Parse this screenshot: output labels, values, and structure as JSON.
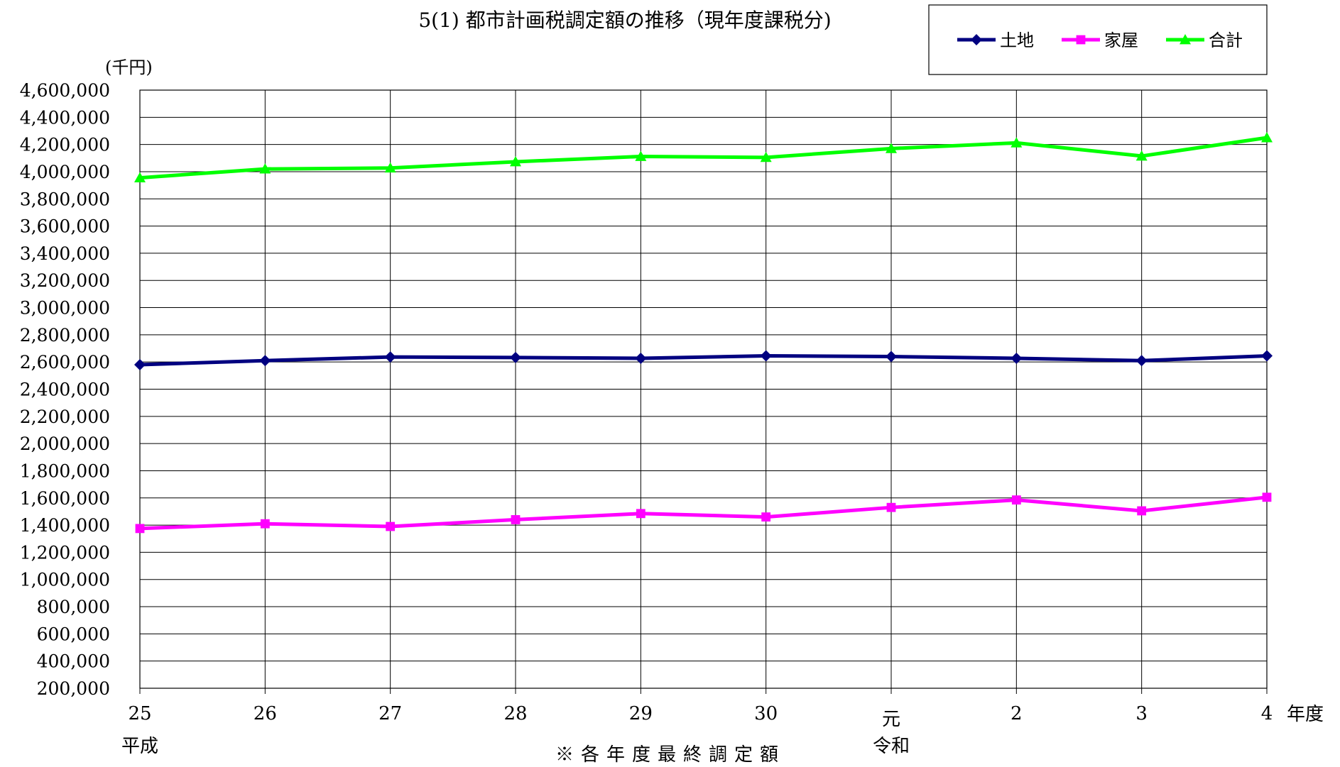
{
  "chart_data": {
    "type": "line",
    "title": "5(1) 都市計画税調定額の推移（現年度課税分)",
    "ylabel": "(千円)",
    "xlabel": "年度",
    "x": [
      "25",
      "26",
      "27",
      "28",
      "29",
      "30",
      "元",
      "2",
      "3",
      "4"
    ],
    "era_labels": [
      {
        "label": "平成",
        "at_index": 0
      },
      {
        "label": "令和",
        "at_index": 6
      }
    ],
    "footnote": "※各年度最終調定額",
    "ylim": [
      200000,
      4600000
    ],
    "yticks": [
      "4,600,000",
      "4,400,000",
      "4,200,000",
      "4,000,000",
      "3,800,000",
      "3,600,000",
      "3,400,000",
      "3,200,000",
      "3,000,000",
      "2,800,000",
      "2,600,000",
      "2,400,000",
      "2,200,000",
      "2,000,000",
      "1,800,000",
      "1,600,000",
      "1,400,000",
      "1,200,000",
      "1,000,000",
      "800,000",
      "600,000",
      "400,000",
      "200,000"
    ],
    "grid": true,
    "legend_position": "top-right",
    "series": [
      {
        "name": "土地",
        "color": "#000080",
        "marker": "diamond",
        "values": [
          2580000,
          2610000,
          2637000,
          2633000,
          2627000,
          2645000,
          2640000,
          2627000,
          2610000,
          2645000
        ]
      },
      {
        "name": "家屋",
        "color": "#ff00ff",
        "marker": "square",
        "values": [
          1375000,
          1410000,
          1390000,
          1440000,
          1485000,
          1460000,
          1530000,
          1585000,
          1505000,
          1605000
        ]
      },
      {
        "name": "合計",
        "color": "#00ff00",
        "marker": "triangle",
        "values": [
          3955000,
          4020000,
          4027000,
          4073000,
          4112000,
          4105000,
          4170000,
          4212000,
          4115000,
          4250000
        ]
      }
    ]
  }
}
